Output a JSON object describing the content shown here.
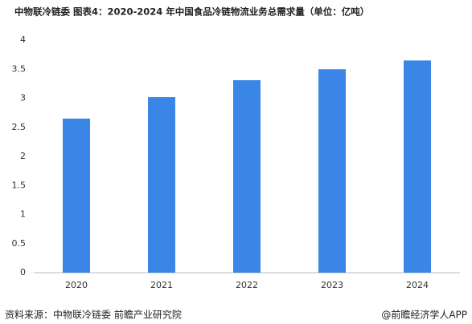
{
  "chart_data": {
    "type": "bar",
    "title": "中物联冷链委  图表4：2020-2024 年中国食品冷链物流业务总需求量（单位：亿吨）",
    "categories": [
      "2020",
      "2021",
      "2022",
      "2023",
      "2024"
    ],
    "values": [
      2.65,
      3.02,
      3.31,
      3.5,
      3.65
    ],
    "color": "#3a86e6",
    "ylim": [
      0,
      4
    ],
    "yticks": [
      0,
      0.5,
      1,
      1.5,
      2,
      2.5,
      3,
      3.5,
      4
    ],
    "grid": false,
    "source": "资料来源：中物联冷链委 前瞻产业研究院",
    "credit": "@前瞻经济学人APP"
  }
}
